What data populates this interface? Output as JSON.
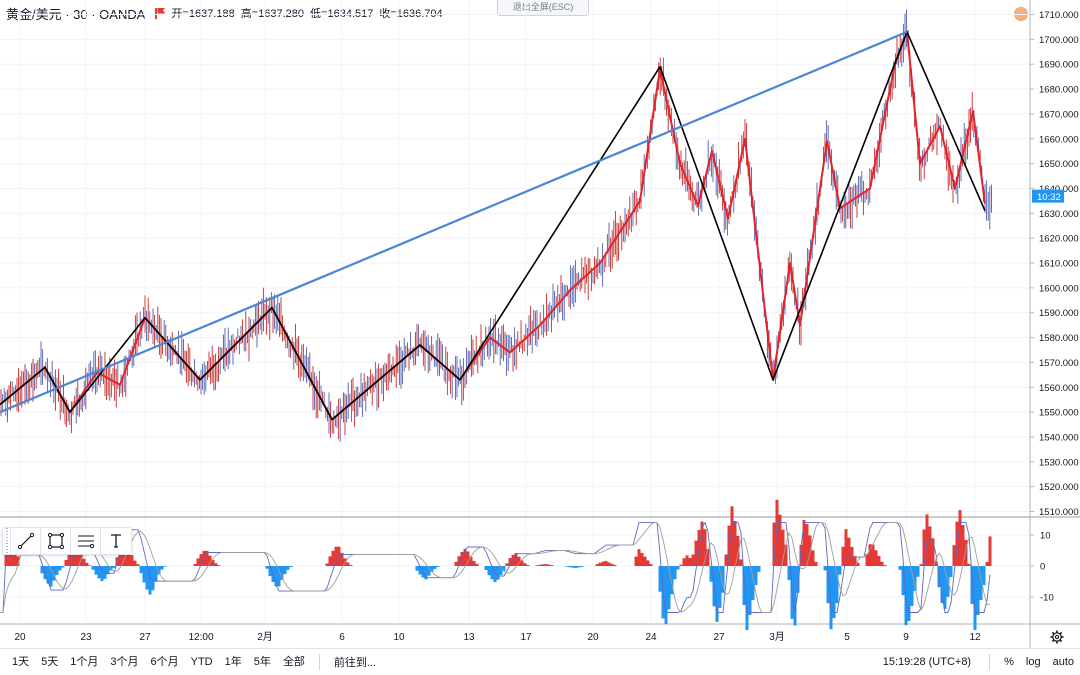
{
  "legend": {
    "symbol": "黄金/美元 · 30 · OANDA",
    "open": "开=1637.188",
    "high": "高=1637.280",
    "low": "低=1634.517",
    "close": "收=1636.704"
  },
  "exit_fullscreen": "退出全屏(ESC)",
  "price_axis": {
    "labels": [
      "1710.000",
      "1700.000",
      "1690.000",
      "1680.000",
      "1670.000",
      "1660.000",
      "1650.000",
      "1640.000",
      "1630.000",
      "1620.000",
      "1610.000",
      "1600.000",
      "1590.000",
      "1580.000",
      "1570.000",
      "1560.000",
      "1550.000",
      "1540.000",
      "1530.000",
      "1520.000",
      "1510.000"
    ],
    "current_label": "10:32",
    "current_color": "#2196f3"
  },
  "indicator_axis": {
    "labels": [
      "10",
      "0",
      "-10"
    ]
  },
  "time_axis": {
    "labels": [
      "20",
      "23",
      "27",
      "12:00",
      "2月",
      "6",
      "10",
      "13",
      "17",
      "20",
      "24",
      "27",
      "3月",
      "5",
      "9",
      "12"
    ]
  },
  "colors": {
    "zigzag_red": "#e0242b",
    "zigzag_black": "#000000",
    "trendline": "#4a86d6",
    "candle_up": "#4f5fb0",
    "hist_pos": "#e53935",
    "hist_neg": "#2196f3"
  },
  "drawing_tools": [
    "trend-line-icon",
    "rectangle-icon",
    "fib-lines-icon",
    "text-icon"
  ],
  "bottom_bar": {
    "ranges": [
      "1天",
      "5天",
      "1个月",
      "3个月",
      "6个月",
      "YTD",
      "1年",
      "5年",
      "全部"
    ],
    "goto": "前往到...",
    "clock": "15:19:28 (UTC+8)",
    "percent": "%",
    "log": "log",
    "auto": "auto"
  },
  "chart_data": {
    "type": "line",
    "title": "黄金/美元 · 30 · OANDA",
    "ylim": [
      1505,
      1713
    ],
    "x": [
      "20",
      "23",
      "27",
      "12:00",
      "2月",
      "6",
      "10",
      "13",
      "17",
      "20",
      "24",
      "27",
      "3月",
      "5",
      "9",
      "12"
    ],
    "series": [
      {
        "points": [
          [
            0,
            1553
          ],
          [
            45,
            1568
          ],
          [
            70,
            1550
          ],
          [
            97,
            1566
          ],
          [
            120,
            1561
          ],
          [
            145,
            1588
          ],
          [
            200,
            1563
          ],
          [
            272,
            1592
          ],
          [
            332,
            1547
          ],
          [
            420,
            1577
          ],
          [
            460,
            1563
          ],
          [
            490,
            1580
          ],
          [
            510,
            1574
          ],
          [
            540,
            1585
          ],
          [
            570,
            1599
          ],
          [
            600,
            1610
          ],
          [
            640,
            1635
          ],
          [
            660,
            1688
          ],
          [
            680,
            1650
          ],
          [
            698,
            1633
          ],
          [
            712,
            1655
          ],
          [
            728,
            1628
          ],
          [
            745,
            1660
          ],
          [
            773,
            1563
          ],
          [
            790,
            1610
          ],
          [
            800,
            1585
          ],
          [
            827,
            1659
          ],
          [
            840,
            1632
          ],
          [
            870,
            1640
          ],
          [
            895,
            1690
          ],
          [
            907,
            1703
          ],
          [
            920,
            1650
          ],
          [
            940,
            1665
          ],
          [
            955,
            1640
          ],
          [
            973,
            1671
          ],
          [
            985,
            1634
          ]
        ]
      },
      {
        "points": [
          [
            0,
            1553
          ],
          [
            45,
            1568
          ],
          [
            70,
            1550
          ],
          [
            145,
            1588
          ],
          [
            200,
            1563
          ],
          [
            272,
            1592
          ],
          [
            332,
            1547
          ],
          [
            420,
            1577
          ],
          [
            460,
            1563
          ],
          [
            660,
            1689
          ],
          [
            773,
            1563
          ],
          [
            907,
            1703
          ],
          [
            985,
            1631
          ]
        ]
      },
      {
        "points": [
          [
            0,
            1550
          ],
          [
            907,
            1703
          ]
        ]
      }
    ]
  }
}
